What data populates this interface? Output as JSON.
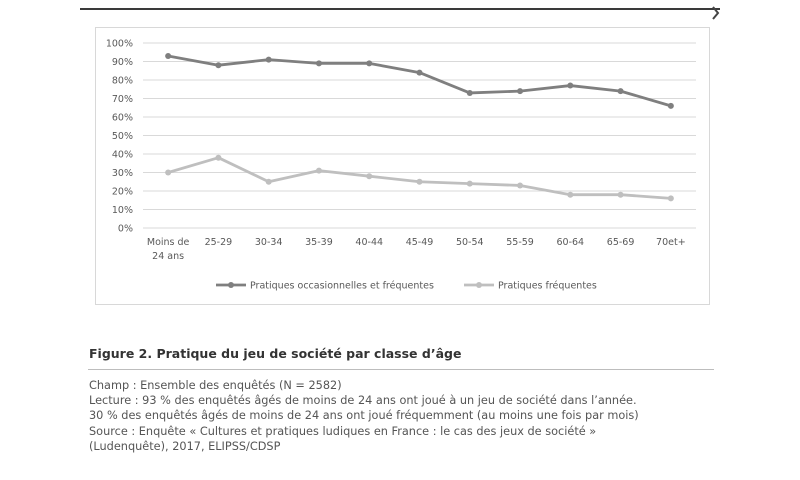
{
  "figure": {
    "title": "Figure 2. Pratique du jeu de société par classe d’âge",
    "notes": [
      "Champ : Ensemble des enquêtés (N = 2582)",
      "Lecture : 93 % des enquêtés âgés de moins de 24 ans ont joué à un jeu de société dans l’année.",
      "30 % des enquêtés âgés de moins de 24 ans ont joué fréquemment (au moins une fois par mois)",
      "Source : Enquête « Cultures et pratiques ludiques en France : le cas des jeux de société »",
      "(Ludenquête), 2017, ELIPSS/CDSP"
    ]
  },
  "chart_data": {
    "type": "line",
    "title": "",
    "xlabel": "",
    "ylabel": "",
    "categories": [
      "Moins de 24 ans",
      "25-29",
      "30-34",
      "35-39",
      "40-44",
      "45-49",
      "50-54",
      "55-59",
      "60-64",
      "65-69",
      "70et+"
    ],
    "category_lines": [
      [
        "Moins de",
        "24 ans"
      ],
      [
        "25-29"
      ],
      [
        "30-34"
      ],
      [
        "35-39"
      ],
      [
        "40-44"
      ],
      [
        "45-49"
      ],
      [
        "50-54"
      ],
      [
        "55-59"
      ],
      [
        "60-64"
      ],
      [
        "65-69"
      ],
      [
        "70et+"
      ]
    ],
    "y_ticks": [
      "0%",
      "10%",
      "20%",
      "30%",
      "40%",
      "50%",
      "60%",
      "70%",
      "80%",
      "90%",
      "100%"
    ],
    "ylim": [
      0,
      100
    ],
    "grid": true,
    "legend_position": "bottom",
    "series": [
      {
        "name": "Pratiques occasionnelles et fréquentes",
        "color": "#7f7f7f",
        "values": [
          93,
          88,
          91,
          89,
          89,
          84,
          73,
          74,
          77,
          74,
          66
        ]
      },
      {
        "name": "Pratiques fréquentes",
        "color": "#bfbfbf",
        "values": [
          30,
          38,
          25,
          31,
          28,
          25,
          24,
          23,
          18,
          18,
          16
        ]
      }
    ]
  }
}
